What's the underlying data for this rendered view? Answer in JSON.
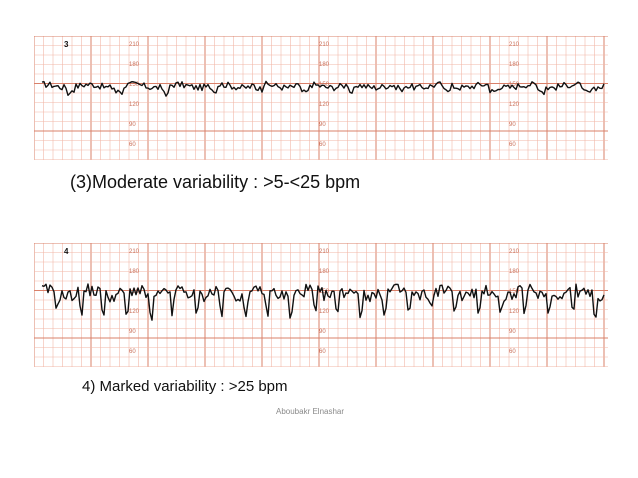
{
  "panels": [
    {
      "number": "3",
      "caption": "(3)Moderate variability : >5-<25 bpm",
      "scale_labels": [
        "210",
        "180",
        "150",
        "120",
        "90",
        "60"
      ],
      "trace": {
        "baseline": 150,
        "amplitude": 6,
        "dip_depth": 10,
        "dip_count": 12
      }
    },
    {
      "number": "4",
      "caption": "4) Marked variability : >25 bpm",
      "scale_labels": [
        "210",
        "180",
        "150",
        "120",
        "90",
        "60"
      ],
      "trace": {
        "baseline": 150,
        "amplitude": 12,
        "dip_depth": 30,
        "dip_count": 24
      }
    }
  ],
  "credit": "Aboubakr Elnashar",
  "colors": {
    "grid_minor": "#f2b7a8",
    "grid_major": "#d9806a",
    "trace": "#111111"
  }
}
